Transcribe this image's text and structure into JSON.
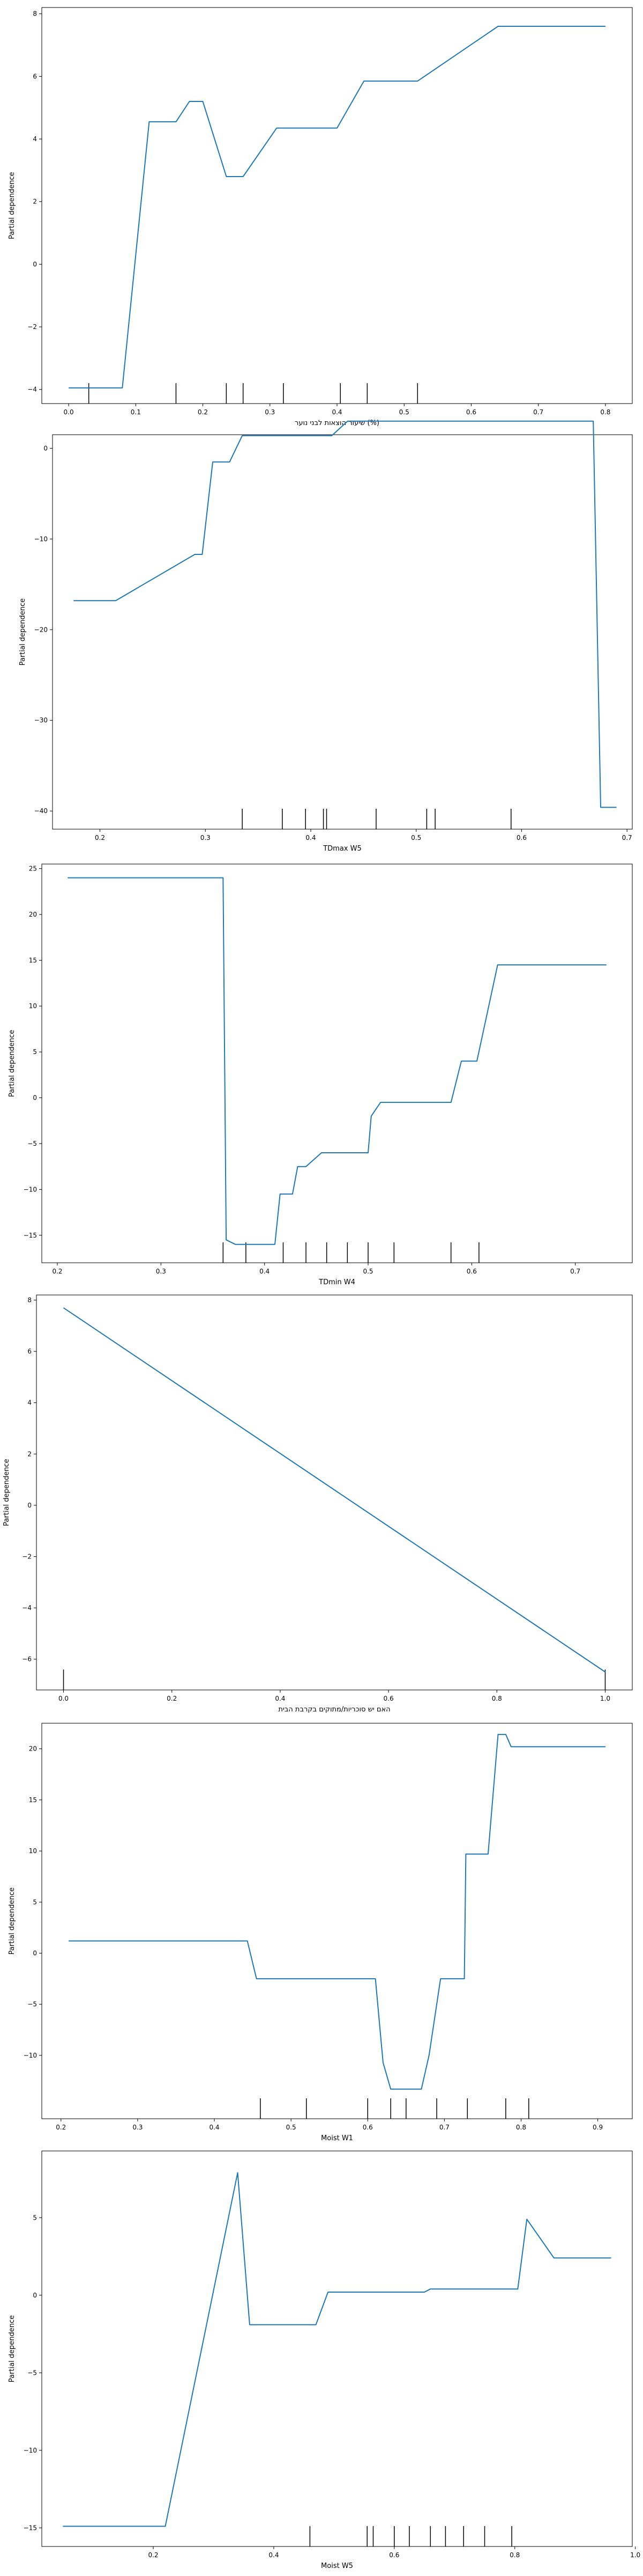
{
  "chart_data": [
    {
      "type": "line",
      "xlabel": "שיעור הוצאות לבני נוער (%)",
      "ylabel": "Partial dependence",
      "xlim": [
        -0.04,
        0.84
      ],
      "ylim": [
        -4.45,
        8.2
      ],
      "xticks": [
        0.0,
        0.1,
        0.2,
        0.3,
        0.4,
        0.5,
        0.6,
        0.7,
        0.8
      ],
      "yticks": [
        -4,
        -2,
        0,
        2,
        4,
        6,
        8
      ],
      "series": [
        {
          "x": [
            0.0,
            0.08,
            0.12,
            0.16,
            0.18,
            0.2,
            0.235,
            0.26,
            0.31,
            0.4,
            0.44,
            0.52,
            0.64,
            0.8
          ],
          "values": [
            -3.95,
            -3.95,
            4.55,
            4.55,
            5.2,
            5.2,
            2.8,
            2.8,
            4.35,
            4.35,
            5.85,
            5.85,
            7.6,
            7.6
          ]
        }
      ],
      "rug": [
        0.03,
        0.16,
        0.235,
        0.26,
        0.32,
        0.405,
        0.445,
        0.52
      ]
    },
    {
      "type": "line",
      "xlabel": "TDmax W5",
      "ylabel": "Partial dependence",
      "xlim": [
        0.155,
        0.705
      ],
      "ylim": [
        -42,
        1.5
      ],
      "xticks": [
        0.2,
        0.3,
        0.4,
        0.5,
        0.6,
        0.7
      ],
      "yticks": [
        -40,
        -30,
        -20,
        -10,
        0
      ],
      "series": [
        {
          "x": [
            0.175,
            0.215,
            0.29,
            0.297,
            0.307,
            0.323,
            0.335,
            0.4,
            0.42,
            0.435,
            0.668,
            0.675,
            0.69
          ],
          "values": [
            -16.8,
            -16.8,
            -11.7,
            -11.7,
            -1.5,
            -1.5,
            1.4,
            1.4,
            1.4,
            3.0,
            3.0,
            -39.6,
            -39.6
          ]
        }
      ],
      "rug": [
        0.335,
        0.373,
        0.395,
        0.412,
        0.415,
        0.462,
        0.51,
        0.518,
        0.59
      ]
    },
    {
      "type": "line",
      "xlabel": "TDmin W4",
      "ylabel": "Partial dependence",
      "xlim": [
        0.185,
        0.755
      ],
      "ylim": [
        -18,
        25.5
      ],
      "xticks": [
        0.2,
        0.3,
        0.4,
        0.5,
        0.6,
        0.7
      ],
      "yticks": [
        -15,
        -10,
        -5,
        0,
        5,
        10,
        15,
        20,
        25
      ],
      "series": [
        {
          "x": [
            0.21,
            0.36,
            0.363,
            0.372,
            0.41,
            0.415,
            0.427,
            0.432,
            0.44,
            0.455,
            0.5,
            0.503,
            0.512,
            0.58,
            0.59,
            0.605,
            0.625,
            0.73
          ],
          "values": [
            24.0,
            24.0,
            -15.5,
            -16.0,
            -16.0,
            -10.5,
            -10.5,
            -7.5,
            -7.5,
            -6.0,
            -6.0,
            -2.0,
            -0.5,
            -0.5,
            4.0,
            4.0,
            14.5,
            14.5
          ]
        }
      ],
      "rug": [
        0.36,
        0.382,
        0.418,
        0.44,
        0.46,
        0.48,
        0.5,
        0.525,
        0.58,
        0.607
      ]
    },
    {
      "type": "line",
      "xlabel": "האם יש סוכריות/מתוקים בקרבת הבית",
      "ylabel": "Partial dependence",
      "xlim": [
        -0.05,
        1.05
      ],
      "ylim": [
        -7.2,
        8.2
      ],
      "xticks": [
        0.0,
        0.2,
        0.4,
        0.6,
        0.8,
        1.0
      ],
      "yticks": [
        -6,
        -4,
        -2,
        0,
        2,
        4,
        6,
        8
      ],
      "series": [
        {
          "x": [
            0.0,
            1.0
          ],
          "values": [
            7.7,
            -6.5
          ]
        }
      ],
      "rug": [
        0.0,
        1.0
      ]
    },
    {
      "type": "line",
      "xlabel": "Moist W1",
      "ylabel": "Partial dependence",
      "xlim": [
        0.175,
        0.945
      ],
      "ylim": [
        -16.2,
        22.5
      ],
      "xticks": [
        0.2,
        0.3,
        0.4,
        0.5,
        0.6,
        0.7,
        0.8,
        0.9
      ],
      "yticks": [
        -10,
        -5,
        0,
        5,
        10,
        15,
        20
      ],
      "series": [
        {
          "x": [
            0.21,
            0.443,
            0.455,
            0.61,
            0.62,
            0.63,
            0.67,
            0.68,
            0.695,
            0.726,
            0.728,
            0.757,
            0.77,
            0.78,
            0.787,
            0.91
          ],
          "values": [
            1.2,
            1.2,
            -2.5,
            -2.5,
            -10.7,
            -13.3,
            -13.3,
            -10.0,
            -2.5,
            -2.5,
            9.7,
            9.7,
            21.4,
            21.4,
            20.2,
            20.2
          ]
        }
      ],
      "rug": [
        0.46,
        0.52,
        0.6,
        0.63,
        0.65,
        0.69,
        0.73,
        0.78,
        0.81
      ]
    },
    {
      "type": "line",
      "xlabel": "Moist W5",
      "ylabel": "Partial dependence",
      "xlim": [
        0.015,
        0.995
      ],
      "ylim": [
        -16.2,
        9.3
      ],
      "xticks": [
        0.2,
        0.4,
        0.6,
        0.8,
        1.0
      ],
      "yticks": [
        -15,
        -10,
        -5,
        0,
        5
      ],
      "series": [
        {
          "x": [
            0.05,
            0.22,
            0.34,
            0.36,
            0.47,
            0.49,
            0.65,
            0.66,
            0.805,
            0.82,
            0.865,
            0.96
          ],
          "values": [
            -14.9,
            -14.9,
            7.9,
            -1.9,
            -1.9,
            0.2,
            0.2,
            0.4,
            0.4,
            4.9,
            2.4,
            2.4
          ]
        }
      ],
      "rug": [
        0.46,
        0.555,
        0.565,
        0.6,
        0.625,
        0.66,
        0.685,
        0.715,
        0.75,
        0.795
      ]
    }
  ],
  "colors": {
    "line": "#1f77b4",
    "rug": "#000000",
    "frame": "#000000",
    "background": "#ffffff"
  }
}
